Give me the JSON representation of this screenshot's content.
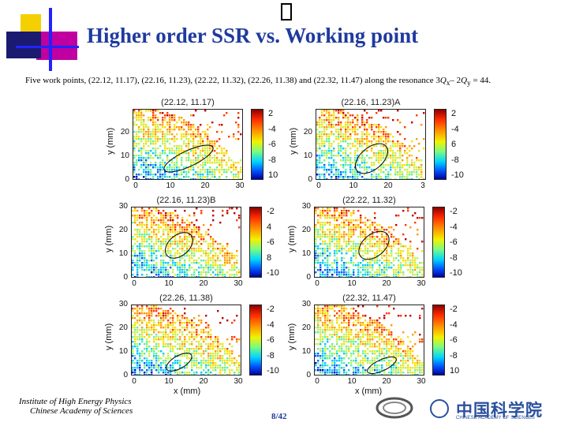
{
  "header": {
    "title": "Higher order SSR vs. Working point",
    "glyph": "",
    "subtitle_prefix": "Five work points, (22.12, 11.17), (22.16, 11.23), (22.22, 11.32), (22.26, 11.38) and (22.32, 11.47) along the resonance 3",
    "subtitle_qx": "Q",
    "subtitle_qx_sub": "x",
    "subtitle_mid": "– 2",
    "subtitle_qy": "Q",
    "subtitle_qy_sub": "y",
    "subtitle_end": " = 44."
  },
  "panels": [
    {
      "title": "(22.12, 11.17)",
      "ylabel": "y (mm)",
      "yticks": [
        "",
        "20",
        "10",
        "0"
      ],
      "xticks": [
        "0",
        "10",
        "20",
        "30"
      ],
      "colorbar": [
        "2",
        "-4",
        "-6",
        "-8",
        "10"
      ]
    },
    {
      "title": "(22.16, 11.23)A",
      "ylabel": "y (mm)",
      "yticks": [
        "",
        "20",
        "10",
        "0"
      ],
      "xticks": [
        "0",
        "10",
        "20",
        "3"
      ],
      "colorbar": [
        "2",
        "-4",
        "6",
        "-8",
        "-10"
      ]
    },
    {
      "title": "(22.16, 11.23)B",
      "ylabel": "y (mm)",
      "yticks": [
        "30",
        "20",
        "10",
        "0"
      ],
      "xticks": [
        "0",
        "10",
        "20",
        "30"
      ],
      "colorbar": [
        "-2",
        "4",
        "-6",
        "8",
        "-10"
      ]
    },
    {
      "title": "(22.22, 11.32)",
      "ylabel": "y (mm)",
      "yticks": [
        "30",
        "20",
        "10",
        "0"
      ],
      "xticks": [
        "0",
        "10",
        "20",
        "30"
      ],
      "colorbar": [
        "-2",
        "-4",
        "-6",
        "-8",
        "-10"
      ]
    },
    {
      "title": "(22.26, 11.38)",
      "ylabel": "y (mm)",
      "yticks": [
        "30",
        "20",
        "10",
        "0"
      ],
      "xticks": [
        "0",
        "10",
        "20",
        "30"
      ],
      "colorbar": [
        "-2",
        "-4",
        "-6",
        "-8",
        "-10"
      ],
      "xlabel": "x (mm)"
    },
    {
      "title": "(22.32, 11.47)",
      "ylabel": "y (mm)",
      "yticks": [
        "30",
        "20",
        "10",
        "0"
      ],
      "xticks": [
        "0",
        "10",
        "20",
        "30"
      ],
      "colorbar": [
        "-2",
        "-4",
        "-6",
        "-8",
        "10"
      ],
      "xlabel": "x (mm)"
    }
  ],
  "footer": {
    "institute_line1": "Institute of High Energy Physics",
    "institute_line2": "Chinese Academy of Sciences",
    "page": "8/42",
    "cas_chinese": "中国科学院",
    "cas_english": "CHINESE ACADEMY OF SCIENCES"
  },
  "colors": {
    "title": "#1f3a9e",
    "accent_yellow": "#f5d000",
    "accent_magenta": "#b3009d",
    "accent_blue": "#1a1aff"
  }
}
